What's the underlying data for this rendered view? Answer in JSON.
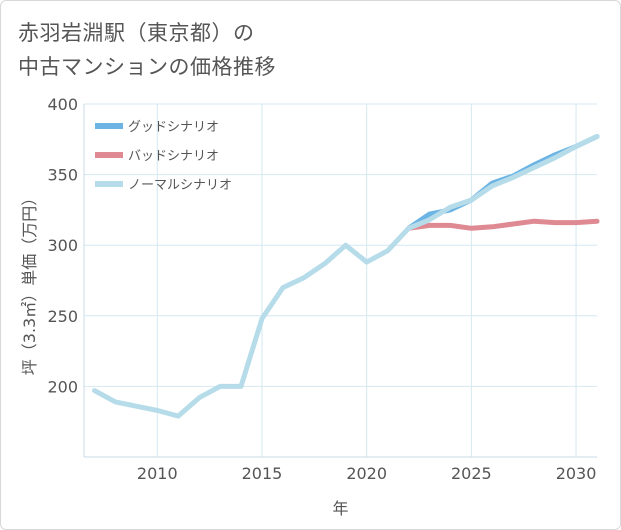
{
  "title_line1": "赤羽岩淵駅（東京都）の",
  "title_line2": "中古マンションの価格推移",
  "chart_data": {
    "type": "line",
    "xlabel": "年",
    "ylabel": "坪（3.3㎡）単価（万円）",
    "xlim": [
      2006.5,
      2031
    ],
    "ylim": [
      150,
      400
    ],
    "xticks": [
      2010,
      2015,
      2020,
      2025,
      2030
    ],
    "yticks": [
      200,
      250,
      300,
      350,
      400
    ],
    "grid": true,
    "legend_position": "top-left",
    "series": [
      {
        "name": "グッドシナリオ",
        "color": "#6cb4e4",
        "x": [
          2022,
          2023,
          2024,
          2025,
          2026,
          2027,
          2028,
          2029,
          2030,
          2031
        ],
        "y": [
          312,
          322,
          325,
          332,
          344,
          349,
          357,
          364,
          370,
          377
        ]
      },
      {
        "name": "バッドシナリオ",
        "color": "#df8a92",
        "x": [
          2022,
          2023,
          2024,
          2025,
          2026,
          2027,
          2028,
          2029,
          2030,
          2031
        ],
        "y": [
          312,
          314,
          314,
          312,
          313,
          315,
          317,
          316,
          316,
          317
        ]
      },
      {
        "name": "ノーマルシナリオ",
        "color": "#b6dcea",
        "x": [
          2007,
          2008,
          2009,
          2010,
          2011,
          2012,
          2013,
          2014,
          2015,
          2016,
          2017,
          2018,
          2019,
          2020,
          2021,
          2022,
          2023,
          2024,
          2025,
          2026,
          2027,
          2028,
          2029,
          2030,
          2031
        ],
        "y": [
          197,
          189,
          186,
          183,
          179,
          192,
          200,
          200,
          248,
          270,
          277,
          287,
          300,
          288,
          296,
          312,
          318,
          327,
          332,
          342,
          348,
          355,
          362,
          370,
          377
        ]
      }
    ]
  }
}
